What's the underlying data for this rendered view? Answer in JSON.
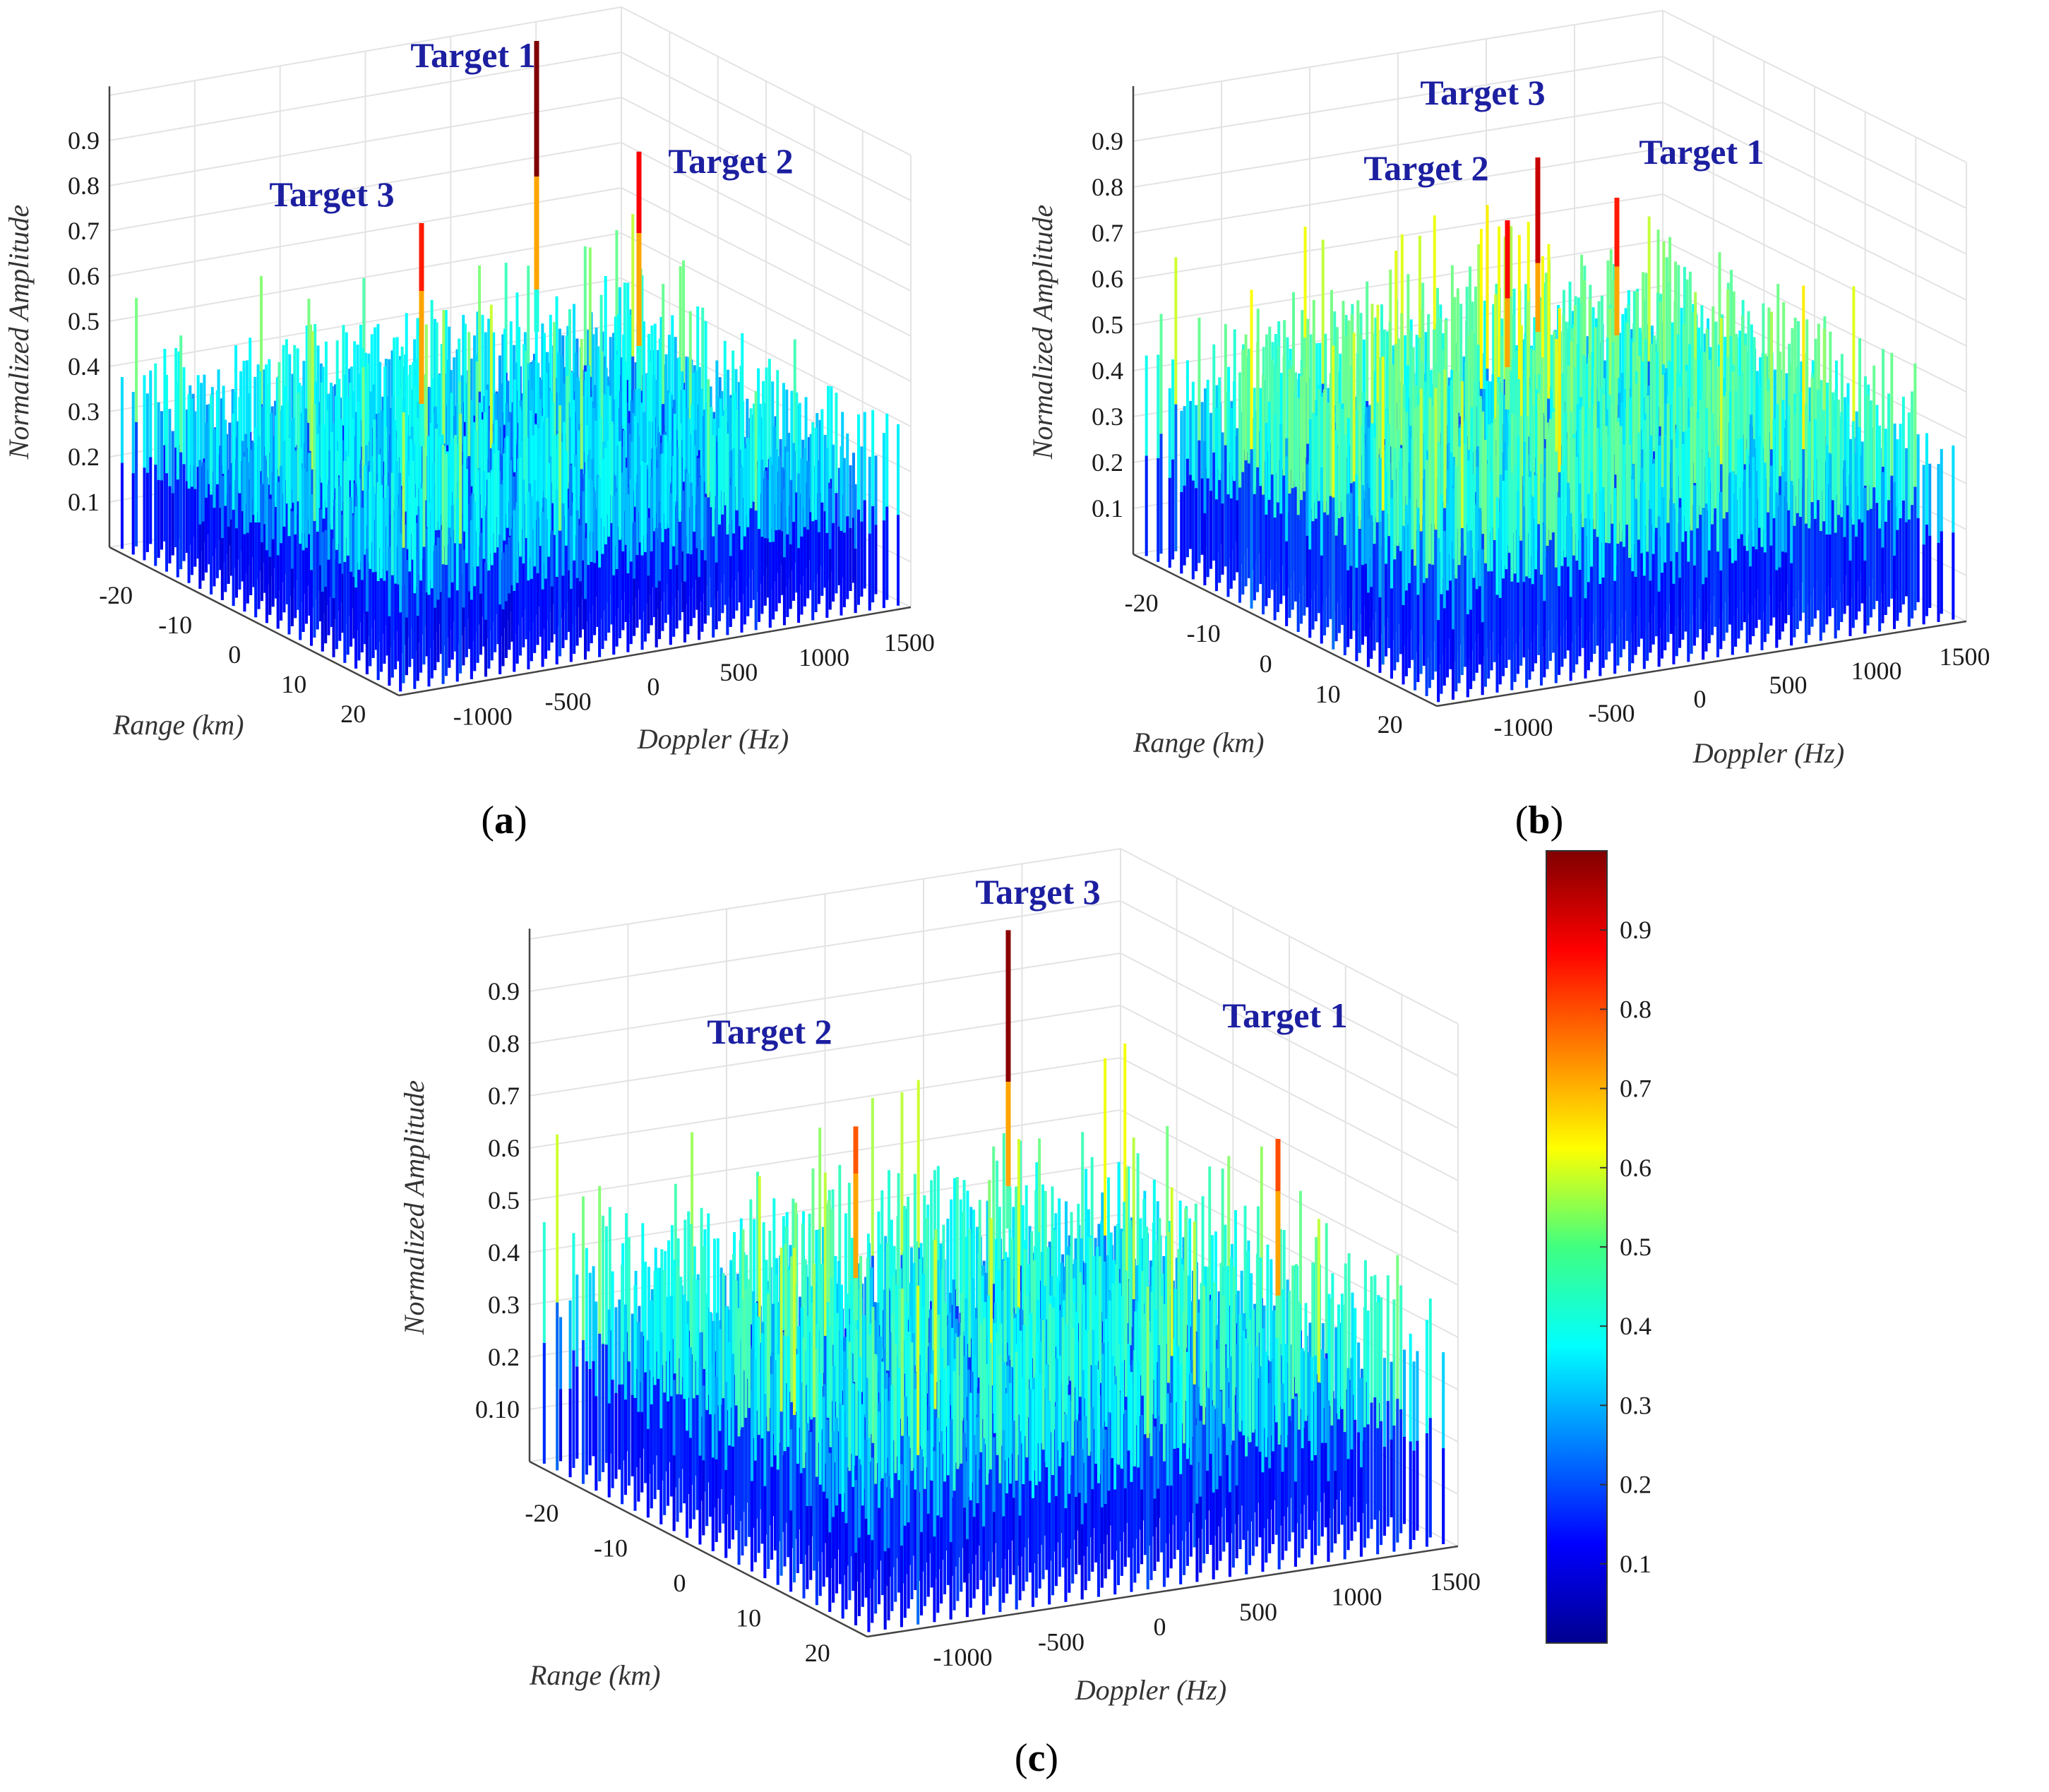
{
  "chart_data": [
    {
      "panel": "a",
      "type": "bar3d",
      "caption_letter": "a",
      "zlabel": "Normalized Amplitude",
      "xlabel": "Range (km)",
      "ylabel": "Doppler (Hz)",
      "z_ticks": [
        "0.1",
        "0.2",
        "0.3",
        "0.4",
        "0.5",
        "0.6",
        "0.7",
        "0.8",
        "0.9"
      ],
      "range_ticks": [
        "-20",
        "-10",
        "0",
        "10",
        "20"
      ],
      "doppler_ticks": [
        "-1000",
        "-500",
        "0",
        "500",
        "1000",
        "1500"
      ],
      "zlim": [
        0,
        1
      ],
      "noise_floor_level": 0.45,
      "targets": [
        {
          "label": "Target 1",
          "peak": 1.0
        },
        {
          "label": "Target 2",
          "peak": 0.88
        },
        {
          "label": "Target 3",
          "peak": 0.85
        }
      ]
    },
    {
      "panel": "b",
      "type": "bar3d",
      "caption_letter": "b",
      "zlabel": "Normalized Amplitude",
      "xlabel": "Range (km)",
      "ylabel": "Doppler (Hz)",
      "z_ticks": [
        "0.1",
        "0.2",
        "0.3",
        "0.4",
        "0.5",
        "0.6",
        "0.7",
        "0.8",
        "0.9"
      ],
      "range_ticks": [
        "-20",
        "-10",
        "0",
        "10",
        "20"
      ],
      "doppler_ticks": [
        "-1000",
        "-500",
        "0",
        "500",
        "1000",
        "1500"
      ],
      "zlim": [
        0,
        1
      ],
      "noise_floor_level": 0.55,
      "targets": [
        {
          "label": "Target 2",
          "peak": 0.87
        },
        {
          "label": "Target 3",
          "peak": 0.93
        },
        {
          "label": "Target 1",
          "peak": 0.85
        }
      ]
    },
    {
      "panel": "c",
      "type": "bar3d",
      "caption_letter": "c",
      "zlabel": "Normalized Amplitude",
      "xlabel": "Range (km)",
      "ylabel": "Doppler (Hz)",
      "z_ticks": [
        "0.10",
        "0.2",
        "0.3",
        "0.4",
        "0.5",
        "0.6",
        "0.7",
        "0.8",
        "0.9"
      ],
      "range_ticks": [
        "-20",
        "-10",
        "0",
        "10",
        "20"
      ],
      "doppler_ticks": [
        "-1000",
        "-500",
        "0",
        "500",
        "1000",
        "1500"
      ],
      "zlim": [
        0,
        1
      ],
      "noise_floor_level": 0.5,
      "targets": [
        {
          "label": "Target 2",
          "peak": 0.79
        },
        {
          "label": "Target 3",
          "peak": 0.99
        },
        {
          "label": "Target 1",
          "peak": 0.8
        }
      ]
    }
  ],
  "colorbar": {
    "ticks": [
      "0.1",
      "0.2",
      "0.3",
      "0.4",
      "0.5",
      "0.6",
      "0.7",
      "0.8",
      "0.9"
    ],
    "range": [
      0,
      1
    ],
    "colormap": [
      "#00008f",
      "#0000ff",
      "#0080ff",
      "#00ffff",
      "#80ff80",
      "#ffff00",
      "#ff8000",
      "#ff0000",
      "#800000"
    ]
  },
  "colors": {
    "target_label": "#1c1fa0",
    "axis": "#444444",
    "grid": "#e3e3e3"
  }
}
